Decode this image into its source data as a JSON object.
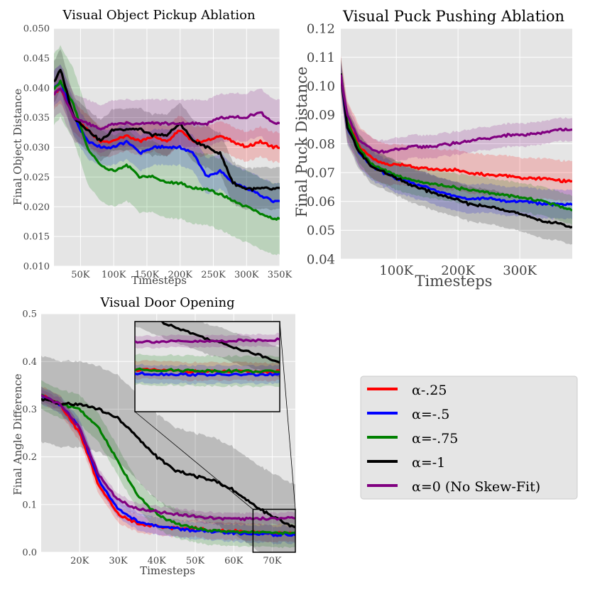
{
  "colors": {
    "red": "#ff0000",
    "blue": "#0000ff",
    "green": "#008000",
    "black": "#000000",
    "purple": "#800080",
    "panel_bg": "#e5e5e5",
    "grid": "#ffffff"
  },
  "legend": [
    {
      "label": "α-.25",
      "color": "#ff0000"
    },
    {
      "label": "α=-.5",
      "color": "#0000ff"
    },
    {
      "label": "α=-.75",
      "color": "#008000"
    },
    {
      "label": "α=-1",
      "color": "#000000"
    },
    {
      "label": "α=0 (No Skew-Fit)",
      "color": "#800080"
    }
  ],
  "chart_data": [
    {
      "type": "line",
      "title": "Visual Object Pickup Ablation",
      "xlabel": "Timesteps",
      "ylabel": "Final Object Distance",
      "xlim": [
        10000,
        350000
      ],
      "ylim": [
        0.01,
        0.05
      ],
      "xticks": [
        50000,
        100000,
        150000,
        200000,
        250000,
        300000,
        350000
      ],
      "xtick_labels": [
        "50K",
        "100K",
        "150K",
        "200K",
        "250K",
        "300K",
        "350K"
      ],
      "yticks": [
        0.01,
        0.015,
        0.02,
        0.025,
        0.03,
        0.035,
        0.04,
        0.045,
        0.05
      ],
      "ytick_labels": [
        "0.010",
        "0.015",
        "0.020",
        "0.025",
        "0.030",
        "0.035",
        "0.040",
        "0.045",
        "0.050"
      ],
      "grid": true,
      "x": [
        10000,
        20000,
        40000,
        60000,
        80000,
        100000,
        120000,
        140000,
        160000,
        180000,
        200000,
        220000,
        240000,
        260000,
        280000,
        300000,
        320000,
        340000,
        350000
      ],
      "series": [
        {
          "name": "α-.25",
          "color": "#ff0000",
          "band": 0.0025,
          "values": [
            0.039,
            0.04,
            0.035,
            0.033,
            0.031,
            0.031,
            0.032,
            0.031,
            0.032,
            0.031,
            0.033,
            0.031,
            0.031,
            0.032,
            0.031,
            0.03,
            0.031,
            0.03,
            0.03
          ]
        },
        {
          "name": "α=-.5",
          "color": "#0000ff",
          "band": 0.003,
          "values": [
            0.04,
            0.041,
            0.035,
            0.031,
            0.03,
            0.03,
            0.031,
            0.029,
            0.03,
            0.03,
            0.03,
            0.029,
            0.025,
            0.026,
            0.024,
            0.023,
            0.022,
            0.021,
            0.021
          ]
        },
        {
          "name": "α=-.75",
          "color": "#008000",
          "band": 0.006,
          "values": [
            0.04,
            0.041,
            0.037,
            0.03,
            0.027,
            0.026,
            0.027,
            0.025,
            0.025,
            0.024,
            0.024,
            0.023,
            0.023,
            0.022,
            0.021,
            0.02,
            0.019,
            0.018,
            0.018
          ]
        },
        {
          "name": "α=-1",
          "color": "#000000",
          "band": 0.0035,
          "values": [
            0.041,
            0.043,
            0.035,
            0.033,
            0.031,
            0.033,
            0.033,
            0.033,
            0.032,
            0.032,
            0.034,
            0.031,
            0.03,
            0.029,
            0.024,
            0.023,
            0.023,
            0.023,
            0.023
          ]
        },
        {
          "name": "α=0 (No Skew-Fit)",
          "color": "#800080",
          "band": 0.004,
          "values": [
            0.039,
            0.04,
            0.035,
            0.034,
            0.033,
            0.034,
            0.034,
            0.034,
            0.034,
            0.034,
            0.034,
            0.034,
            0.034,
            0.035,
            0.035,
            0.035,
            0.036,
            0.034,
            0.034
          ]
        }
      ]
    },
    {
      "type": "line",
      "title": "Visual Puck Pushing Ablation",
      "xlabel": "Timesteps",
      "ylabel": "Final Puck Distance",
      "xlim": [
        10000,
        385000
      ],
      "ylim": [
        0.04,
        0.12
      ],
      "xticks": [
        100000,
        200000,
        300000
      ],
      "xtick_labels": [
        "100K",
        "200K",
        "300K"
      ],
      "yticks": [
        0.04,
        0.05,
        0.06,
        0.07,
        0.08,
        0.09,
        0.1,
        0.11,
        0.12
      ],
      "ytick_labels": [
        "0.04",
        "0.05",
        "0.06",
        "0.07",
        "0.08",
        "0.09",
        "0.10",
        "0.11",
        "0.12"
      ],
      "grid": true,
      "x": [
        10000,
        20000,
        40000,
        60000,
        80000,
        100000,
        130000,
        160000,
        190000,
        220000,
        250000,
        280000,
        310000,
        340000,
        370000,
        385000
      ],
      "series": [
        {
          "name": "α-.25",
          "color": "#ff0000",
          "band": 0.007,
          "values": [
            0.104,
            0.088,
            0.079,
            0.075,
            0.073,
            0.073,
            0.072,
            0.071,
            0.071,
            0.07,
            0.069,
            0.069,
            0.068,
            0.068,
            0.067,
            0.067
          ]
        },
        {
          "name": "α=-.5",
          "color": "#0000ff",
          "band": 0.005,
          "values": [
            0.104,
            0.086,
            0.077,
            0.072,
            0.07,
            0.068,
            0.066,
            0.064,
            0.062,
            0.061,
            0.061,
            0.06,
            0.06,
            0.059,
            0.059,
            0.059
          ]
        },
        {
          "name": "α=-.75",
          "color": "#008000",
          "band": 0.005,
          "values": [
            0.104,
            0.088,
            0.078,
            0.073,
            0.071,
            0.069,
            0.067,
            0.066,
            0.065,
            0.064,
            0.063,
            0.062,
            0.061,
            0.06,
            0.058,
            0.057
          ]
        },
        {
          "name": "α=-1",
          "color": "#000000",
          "band": 0.006,
          "values": [
            0.104,
            0.086,
            0.077,
            0.072,
            0.07,
            0.068,
            0.065,
            0.063,
            0.061,
            0.059,
            0.058,
            0.057,
            0.055,
            0.053,
            0.052,
            0.051
          ]
        },
        {
          "name": "α=0 (No Skew-Fit)",
          "color": "#800080",
          "band": 0.004,
          "values": [
            0.104,
            0.09,
            0.081,
            0.078,
            0.077,
            0.078,
            0.079,
            0.079,
            0.08,
            0.081,
            0.082,
            0.083,
            0.083,
            0.084,
            0.085,
            0.085
          ]
        }
      ]
    },
    {
      "type": "line",
      "title": "Visual Door Opening",
      "xlabel": "Timesteps",
      "ylabel": "Final Angle Difference",
      "xlim": [
        10000,
        76000
      ],
      "ylim": [
        0.0,
        0.5
      ],
      "xticks": [
        20000,
        30000,
        40000,
        50000,
        60000,
        70000
      ],
      "xtick_labels": [
        "20K",
        "30K",
        "40K",
        "50K",
        "60K",
        "70K"
      ],
      "yticks": [
        0.0,
        0.1,
        0.2,
        0.3,
        0.4,
        0.5
      ],
      "ytick_labels": [
        "0.0",
        "0.1",
        "0.2",
        "0.3",
        "0.4",
        "0.5"
      ],
      "grid": true,
      "inset_xlim": [
        65000,
        76000
      ],
      "inset_ylim": [
        0.0,
        0.09
      ],
      "x": [
        10000,
        15000,
        20000,
        25000,
        30000,
        35000,
        40000,
        45000,
        50000,
        55000,
        60000,
        65000,
        70000,
        76000
      ],
      "series": [
        {
          "name": "α-.25",
          "color": "#ff0000",
          "band": 0.018,
          "values": [
            0.33,
            0.31,
            0.25,
            0.14,
            0.08,
            0.06,
            0.055,
            0.05,
            0.05,
            0.045,
            0.045,
            0.042,
            0.04,
            0.04
          ]
        },
        {
          "name": "α=-.5",
          "color": "#0000ff",
          "band": 0.018,
          "values": [
            0.33,
            0.31,
            0.26,
            0.15,
            0.09,
            0.065,
            0.055,
            0.05,
            0.045,
            0.042,
            0.04,
            0.038,
            0.037,
            0.037
          ]
        },
        {
          "name": "α=-.75",
          "color": "#008000",
          "band": 0.03,
          "values": [
            0.33,
            0.31,
            0.3,
            0.26,
            0.19,
            0.12,
            0.08,
            0.06,
            0.05,
            0.045,
            0.043,
            0.042,
            0.041,
            0.04
          ]
        },
        {
          "name": "α=-1",
          "color": "#000000",
          "band": 0.09,
          "values": [
            0.32,
            0.31,
            0.31,
            0.3,
            0.28,
            0.24,
            0.2,
            0.17,
            0.16,
            0.15,
            0.13,
            0.1,
            0.075,
            0.05
          ]
        },
        {
          "name": "α=0 (No Skew-Fit)",
          "color": "#800080",
          "band": 0.012,
          "values": [
            0.33,
            0.31,
            0.26,
            0.16,
            0.11,
            0.09,
            0.085,
            0.08,
            0.075,
            0.072,
            0.07,
            0.07,
            0.07,
            0.072
          ]
        }
      ]
    }
  ]
}
